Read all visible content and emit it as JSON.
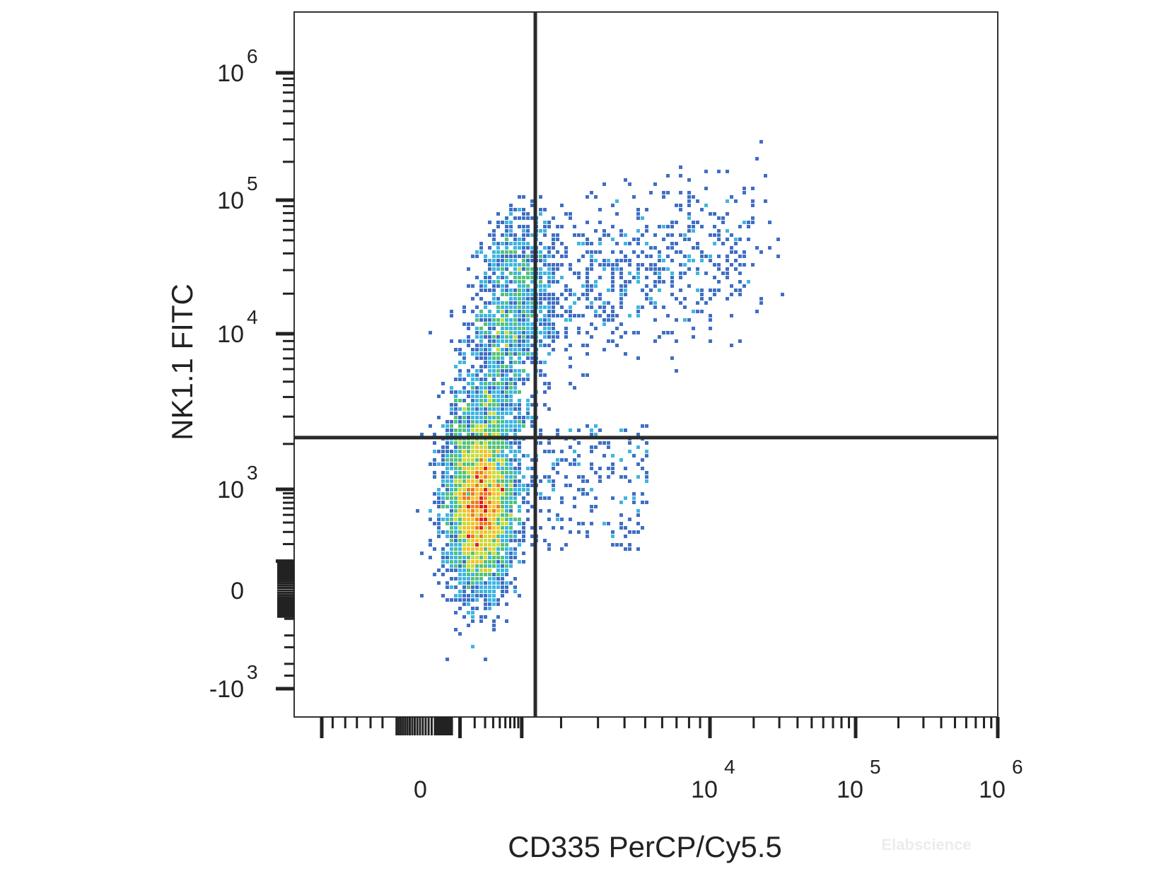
{
  "chart_data": {
    "type": "scatter",
    "subtype": "flow-cytometry density dot plot with quadrant gates",
    "xlabel": "CD335 PerCP/Cy5.5",
    "ylabel": "NK1.1 FITC",
    "x_scale": "biexponential",
    "y_scale": "biexponential",
    "x_ticks": [
      {
        "value": 0,
        "base": "0",
        "exp": ""
      },
      {
        "value": 10000,
        "base": "10",
        "exp": "4"
      },
      {
        "value": 100000,
        "base": "10",
        "exp": "5"
      },
      {
        "value": 1000000,
        "base": "10",
        "exp": "6"
      }
    ],
    "y_ticks": [
      {
        "value": -1000,
        "base": "-10",
        "exp": "3"
      },
      {
        "value": 0,
        "base": "0",
        "exp": ""
      },
      {
        "value": 1000,
        "base": "10",
        "exp": "3"
      },
      {
        "value": 10000,
        "base": "10",
        "exp": "4"
      },
      {
        "value": 100000,
        "base": "10",
        "exp": "5"
      },
      {
        "value": 1000000,
        "base": "10",
        "exp": "6"
      }
    ],
    "quadrant_gate": {
      "x": 1500,
      "y": 2200
    },
    "populations": [
      {
        "name": "",
        "center": [
          250,
          700
        ],
        "spread": "dense core, highest density (red)"
      },
      {
        "name": "",
        "center": [
          400,
          6000
        ],
        "spread": "NK1.1+ arm extending upward"
      },
      {
        "name": "",
        "center": [
          8000,
          30000
        ],
        "spread": "sparse double-positive tail"
      }
    ],
    "density_colors": [
      "#2b3b96",
      "#3f6fc4",
      "#3fb6e0",
      "#54c27a",
      "#c8dc3a",
      "#f5c22b",
      "#f07a1f",
      "#e01f1f"
    ],
    "grid": false,
    "legend": "none"
  },
  "watermark": "Elabscience"
}
